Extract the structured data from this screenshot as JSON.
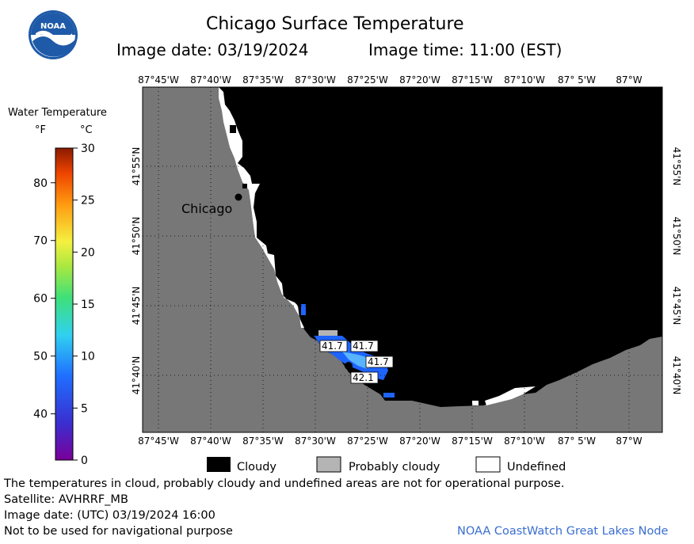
{
  "header": {
    "logo_text": "NOAA",
    "title": "Chicago Surface Temperature",
    "image_date_label": "Image date: 03/19/2024",
    "image_time_label": "Image time: 11:00 (EST)"
  },
  "colorbar": {
    "title": "Water Temperature",
    "unit_f": "°F",
    "unit_c": "°C",
    "f_ticks": [
      "80",
      "70",
      "60",
      "50",
      "40"
    ],
    "c_ticks": [
      "30",
      "25",
      "20",
      "15",
      "10",
      "5",
      "0"
    ]
  },
  "map": {
    "lon_labels": [
      "87°45'W",
      "87°40'W",
      "87°35'W",
      "87°30'W",
      "87°25'W",
      "87°20'W",
      "87°15'W",
      "87°10'W",
      "87° 5'W",
      "87°W"
    ],
    "lat_labels": [
      "41°55'N",
      "41°50'N",
      "41°45'N",
      "41°40'N"
    ],
    "city_label": "Chicago",
    "temp_labels": [
      "41.7",
      "41.7",
      "41.7",
      "42.1"
    ],
    "colors": {
      "land": "#777777",
      "lake_cloudy": "#000000",
      "undefined": "#ffffff",
      "probably_cloudy": "#b4b4b4",
      "water_warm": "#1e64ff",
      "water_cool": "#58b4ff"
    }
  },
  "legend": {
    "cloudy": "Cloudy",
    "probably_cloudy": "Probably cloudy",
    "undefined": "Undefined"
  },
  "footer": {
    "disclaimer": "The temperatures in cloud, probably cloudy and undefined areas are not for operational purpose.",
    "satellite": "Satellite: AVHRRF_MB",
    "utc_date": "Image date: (UTC) 03/19/2024  16:00",
    "nav_warning": "Not to be used for navigational purpose",
    "credit": "NOAA CoastWatch Great Lakes Node"
  }
}
